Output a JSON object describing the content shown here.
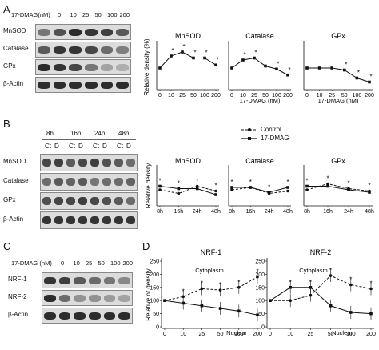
{
  "panels": {
    "A": {
      "letter": "A",
      "treatment_header": "17-DMAG(nM)",
      "doses": [
        "0",
        "10",
        "25",
        "50",
        "100",
        "200"
      ],
      "proteins": [
        "MnSOD",
        "Catalase",
        "GPx",
        "β-Actin"
      ]
    },
    "B": {
      "letter": "B",
      "times": [
        "8h",
        "16h",
        "24h",
        "48h"
      ],
      "conditions": [
        "Ct",
        "D"
      ],
      "proteins": [
        "MnSOD",
        "Catalase",
        "GPx",
        "β-Actin"
      ],
      "legend": [
        {
          "label": "Control",
          "style": "dashed"
        },
        {
          "label": "17-DMAG",
          "style": "solid"
        }
      ]
    },
    "C": {
      "letter": "C",
      "treatment_header": "17-DMAG (nM)",
      "doses": [
        "0",
        "10",
        "25",
        "50",
        "100",
        "200"
      ],
      "proteins": [
        "NRF-1",
        "NRF-2",
        "β-Actin"
      ]
    },
    "D": {
      "letter": "D"
    }
  },
  "chart_data": [
    {
      "id": "A-MnSOD",
      "type": "line",
      "title": "MnSOD",
      "xlabel": "",
      "ylabel": "Relative density (%)",
      "x": [
        "0",
        "10",
        "25",
        "50",
        "100",
        "200"
      ],
      "ylim": [
        0,
        220
      ],
      "series": [
        {
          "name": "",
          "values": [
            100,
            160,
            180,
            150,
            150,
            115
          ]
        }
      ],
      "stars": [
        1,
        2,
        3,
        4,
        5
      ]
    },
    {
      "id": "A-Catalase",
      "type": "line",
      "title": "Catalase",
      "xlabel": "17-DMAG (nM)",
      "ylabel": "",
      "x": [
        "0",
        "10",
        "25",
        "50",
        "100",
        "200"
      ],
      "ylim": [
        0,
        220
      ],
      "series": [
        {
          "name": "",
          "values": [
            100,
            140,
            150,
            110,
            95,
            65
          ]
        }
      ],
      "stars": [
        1,
        2,
        4,
        5
      ]
    },
    {
      "id": "A-GPx",
      "type": "line",
      "title": "GPx",
      "xlabel": "17-DMAG (nM)",
      "ylabel": "",
      "x": [
        "0",
        "10",
        "25",
        "50",
        "100",
        "200"
      ],
      "ylim": [
        0,
        220
      ],
      "series": [
        {
          "name": "",
          "values": [
            100,
            100,
            100,
            90,
            50,
            30
          ]
        }
      ],
      "stars": [
        3,
        4,
        5
      ]
    },
    {
      "id": "B-MnSOD",
      "type": "line",
      "title": "MnSOD",
      "xlabel": "",
      "ylabel": "Relative density",
      "x": [
        "8h",
        "16h",
        "24h",
        "48h"
      ],
      "ylim": [
        0,
        30
      ],
      "series": [
        {
          "name": "Control",
          "values": [
            12,
            9,
            15,
            11
          ]
        },
        {
          "name": "17-DMAG",
          "values": [
            15,
            13,
            13,
            8
          ]
        }
      ],
      "stars": [
        0,
        1,
        2,
        3
      ]
    },
    {
      "id": "B-Catalase",
      "type": "line",
      "title": "Catalase",
      "xlabel": "",
      "ylabel": "",
      "x": [
        "8h",
        "16h",
        "24h",
        "48h"
      ],
      "ylim": [
        0,
        30
      ],
      "series": [
        {
          "name": "Control",
          "values": [
            12,
            14,
            9,
            11
          ]
        },
        {
          "name": "17-DMAG",
          "values": [
            14,
            14,
            10,
            14
          ]
        }
      ],
      "stars": [
        0,
        1,
        2,
        3
      ]
    },
    {
      "id": "B-GPx",
      "type": "line",
      "title": "GPx",
      "xlabel": "",
      "ylabel": "",
      "x": [
        "8h",
        "16h",
        "24h",
        "48h"
      ],
      "ylim": [
        0,
        30
      ],
      "series": [
        {
          "name": "Control",
          "values": [
            12,
            17,
            13,
            11
          ]
        },
        {
          "name": "17-DMAG",
          "values": [
            15,
            15,
            12,
            10
          ]
        }
      ],
      "stars": [
        0,
        1,
        2,
        3
      ]
    },
    {
      "id": "D-NRF1",
      "type": "line",
      "title": "NRF-1",
      "xlabel": "",
      "ylabel": "Relative of density",
      "x": [
        "0",
        "10",
        "25",
        "50",
        "100",
        "200"
      ],
      "ylim": [
        0,
        250
      ],
      "yticks": [
        "0",
        "50",
        "100",
        "150",
        "200",
        "250"
      ],
      "series": [
        {
          "name": "Cytoplasm",
          "values": [
            100,
            115,
            145,
            140,
            150,
            190
          ]
        },
        {
          "name": "Nuclear",
          "values": [
            100,
            90,
            80,
            70,
            60,
            45
          ]
        }
      ],
      "series_labels": [
        "Cytoplasm",
        "Nuclear"
      ],
      "stars": [
        1,
        2,
        3,
        4,
        5
      ]
    },
    {
      "id": "D-NRF2",
      "type": "line",
      "title": "NRF-2",
      "xlabel": "",
      "ylabel": "",
      "x": [
        "0",
        "10",
        "25",
        "50",
        "100",
        "200"
      ],
      "ylim": [
        0,
        250
      ],
      "yticks": [
        "0",
        "50",
        "100",
        "150",
        "200",
        "250"
      ],
      "series": [
        {
          "name": "Cytoplasm",
          "values": [
            100,
            100,
            120,
            195,
            160,
            145
          ]
        },
        {
          "name": "Nuclear",
          "values": [
            100,
            150,
            150,
            80,
            55,
            50
          ]
        }
      ],
      "series_labels": [
        "Cytoplasm",
        "Nuclear"
      ],
      "stars": [
        1,
        2,
        3,
        4,
        5
      ]
    }
  ]
}
